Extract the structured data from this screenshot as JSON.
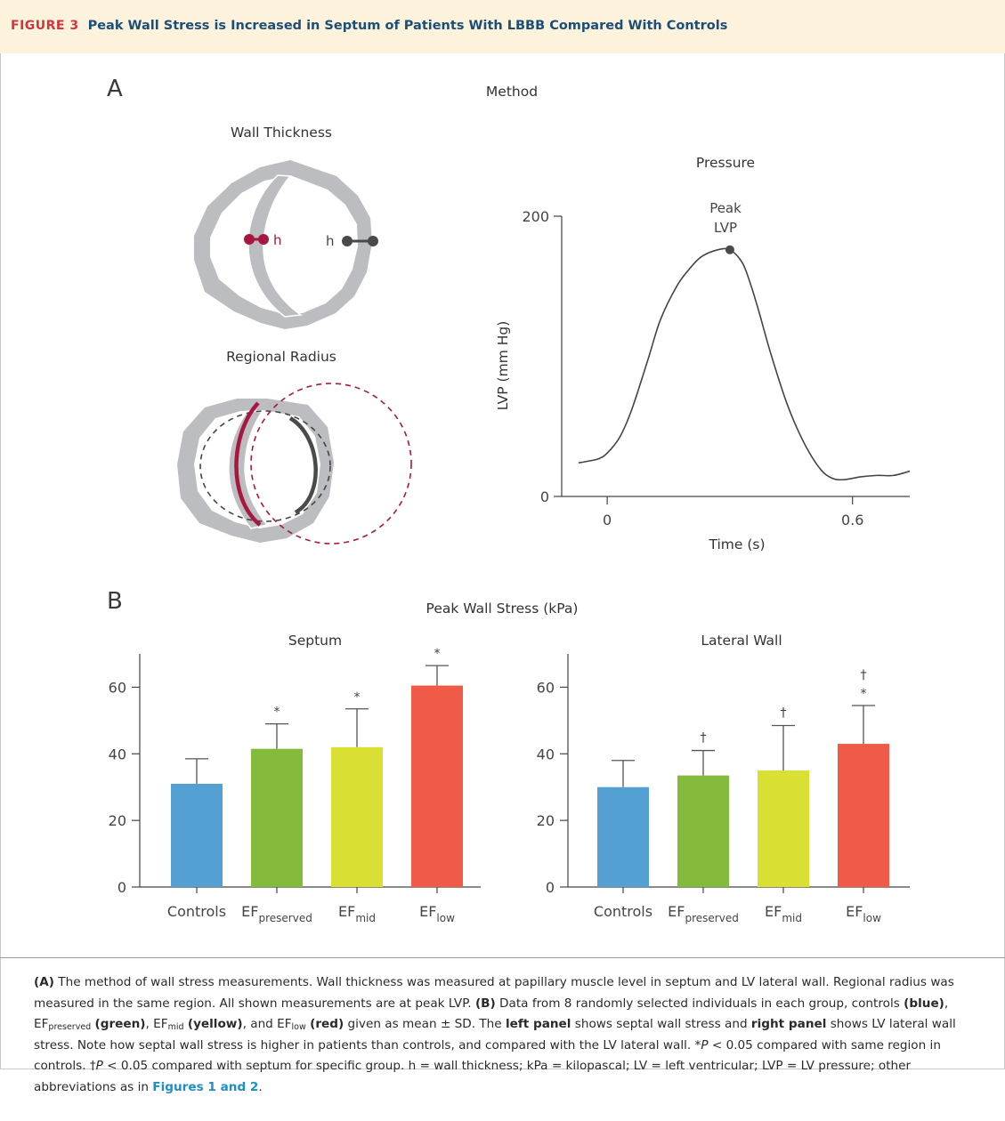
{
  "header": {
    "figure_label": "FIGURE 3",
    "title": "Peak Wall Stress is Increased in Septum of Patients With LBBB Compared With Controls"
  },
  "panel_a": {
    "letter": "A",
    "title": "Method",
    "wall_thickness_title": "Wall Thickness",
    "h_label": "h",
    "regional_radius_title": "Regional Radius",
    "pressure_title": "Pressure",
    "peak_label_1": "Peak",
    "peak_label_2": "LVP",
    "colors": {
      "myocardium": "#bcbdc0",
      "septum": "#a8173f",
      "lateral": "#4a4a4a"
    }
  },
  "panel_b": {
    "letter": "B",
    "title": "Peak Wall Stress (kPa)"
  },
  "chart_data": [
    {
      "type": "line",
      "title": "Pressure",
      "xlabel": "Time (s)",
      "ylabel": "LVP (mm Hg)",
      "xlim": [
        -0.07,
        0.74
      ],
      "ylim": [
        0,
        200
      ],
      "xticks": [
        "0",
        "0.6"
      ],
      "yticks": [
        "0",
        "200"
      ],
      "annotation": "Peak LVP",
      "series": [
        {
          "x": [
            -0.07,
            -0.05,
            -0.02,
            0.0,
            0.03,
            0.06,
            0.1,
            0.13,
            0.17,
            0.2,
            0.23,
            0.27,
            0.3,
            0.33,
            0.35,
            0.37,
            0.4,
            0.44,
            0.48,
            0.52,
            0.55,
            0.58,
            0.62,
            0.66,
            0.7,
            0.74
          ],
          "y": [
            24,
            25,
            27,
            31,
            42,
            62,
            98,
            126,
            150,
            162,
            171,
            176,
            176,
            167,
            152,
            133,
            102,
            66,
            39,
            20,
            13,
            12,
            14,
            15,
            15,
            18
          ]
        }
      ],
      "peak": {
        "x": 0.3,
        "y": 176
      }
    },
    {
      "type": "bar",
      "title": "Septum",
      "categories": [
        "Controls",
        "EFpreserved",
        "EFmid",
        "EFlow"
      ],
      "values": [
        31,
        41.5,
        42,
        60.5
      ],
      "error_plus": [
        7.5,
        7.5,
        11.5,
        6
      ],
      "markers": [
        "",
        "*",
        "*",
        "*"
      ],
      "colors": [
        "#55a0d3",
        "#85bb3c",
        "#d9e033",
        "#ef5b46"
      ],
      "ylim": [
        0,
        70
      ],
      "yticks": [
        0,
        20,
        40,
        60
      ]
    },
    {
      "type": "bar",
      "title": "Lateral Wall",
      "categories": [
        "Controls",
        "EFpreserved",
        "EFmid",
        "EFlow"
      ],
      "values": [
        30,
        33.5,
        35,
        43
      ],
      "error_plus": [
        8,
        7.5,
        13.5,
        11.5
      ],
      "markers": [
        "",
        "†",
        "†",
        "*†"
      ],
      "colors": [
        "#55a0d3",
        "#85bb3c",
        "#d9e033",
        "#ef5b46"
      ],
      "ylim": [
        0,
        70
      ],
      "yticks": [
        0,
        20,
        40,
        60
      ]
    }
  ],
  "category_labels": [
    {
      "main": "Controls",
      "sub": ""
    },
    {
      "main": "EF",
      "sub": "preserved"
    },
    {
      "main": "EF",
      "sub": "mid"
    },
    {
      "main": "EF",
      "sub": "low"
    }
  ],
  "caption": {
    "p1_a": "(A)",
    "p1_b": " The method of wall stress measurements. Wall thickness was measured at papillary muscle level in septum and LV lateral wall. Regional radius was measured in the same region. All shown measurements are at peak LVP. ",
    "p1_c": "(B)",
    "p1_d": " Data from 8 randomly selected individuals in each group, controls ",
    "blue": "(blue)",
    "ef": "EF",
    "sub_preserved": "preserved",
    "green": "(green)",
    "sub_mid": "mid",
    "yellow": "(yellow)",
    "and_ef": ", and EF",
    "sub_low": "low",
    "red": "(red)",
    "p2": " given as mean ± SD. The ",
    "left_panel": "left panel",
    "p3": " shows septal wall stress and ",
    "right_panel": "right panel",
    "p4": " shows LV lateral wall stress. Note how septal wall stress is higher in patients than controls, and compared with the LV lateral wall. *",
    "p_italic": "P",
    "p5": " < 0.05 compared with same region in controls. †",
    "p6": " < 0.05 compared with septum for specific group. h = wall thickness; kPa = kilopascal; LV = left ventricular; LVP = LV pressure; other abbreviations as in ",
    "link": "Figures 1 and 2",
    "end": "."
  }
}
